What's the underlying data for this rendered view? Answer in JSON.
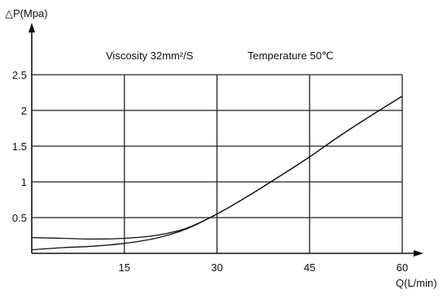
{
  "chart_data": {
    "type": "line",
    "ylabel": "△P(Mpa)",
    "xlabel": "Q(L/min)",
    "x_ticks": [
      "15",
      "30",
      "45",
      "60"
    ],
    "y_ticks": [
      "0.5",
      "1",
      "1.5",
      "2",
      "2.5"
    ],
    "xlim": [
      0,
      60
    ],
    "ylim": [
      0,
      2.5
    ],
    "grid": true,
    "annotations": {
      "viscosity": "Viscosity 32mm²/S",
      "temperature": "Temperature 50℃"
    },
    "series": [
      {
        "x": [
          0,
          5,
          10,
          15,
          20,
          25,
          30,
          35,
          40,
          45,
          50,
          55,
          60
        ],
        "values": [
          0.22,
          0.21,
          0.2,
          0.21,
          0.25,
          0.35,
          0.55,
          0.8,
          1.07,
          1.35,
          1.65,
          1.93,
          2.2
        ]
      },
      {
        "x": [
          0,
          5,
          10,
          15,
          20,
          25,
          30,
          35,
          40,
          45,
          50,
          55,
          60
        ],
        "values": [
          0.05,
          0.08,
          0.1,
          0.14,
          0.21,
          0.34,
          0.55,
          0.8,
          1.07,
          1.35,
          1.65,
          1.93,
          2.2
        ]
      }
    ]
  }
}
